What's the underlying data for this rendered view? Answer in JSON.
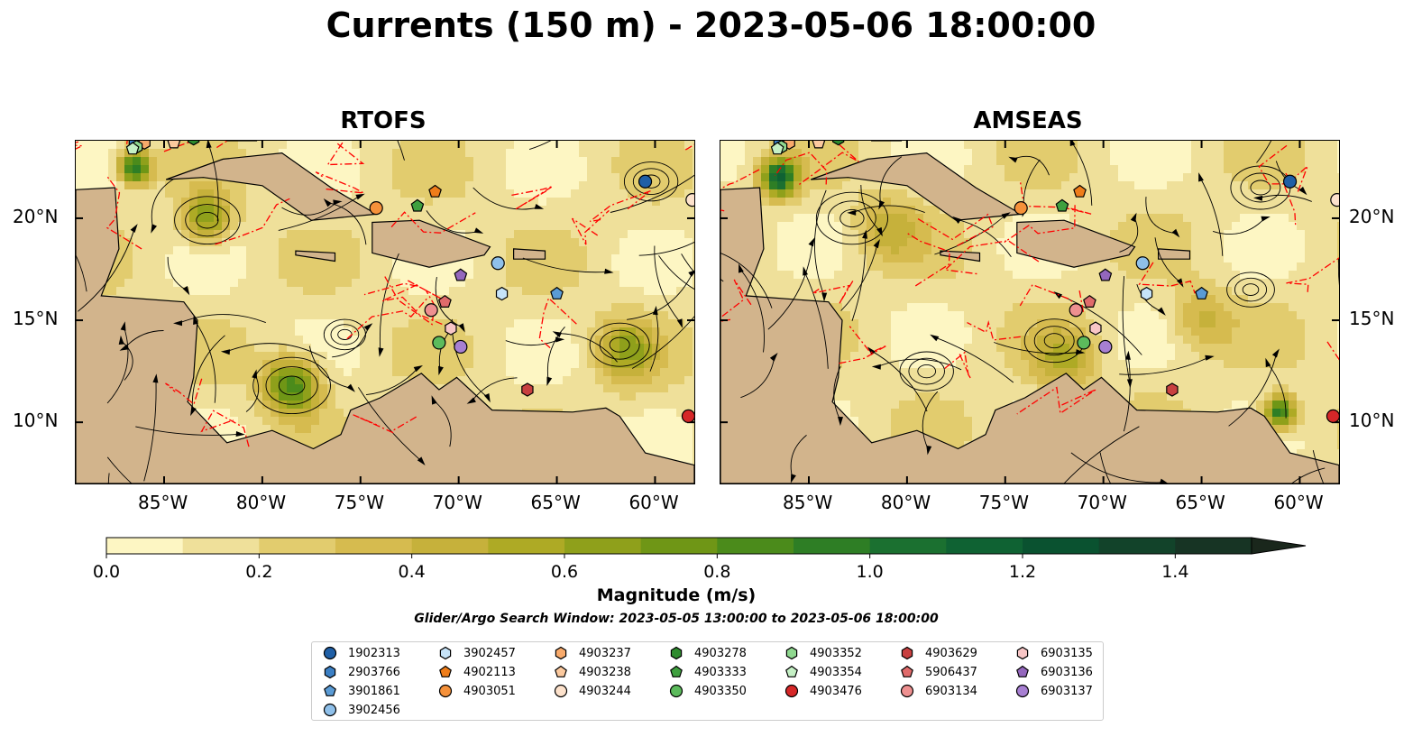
{
  "title": "Currents (150 m) - 2023-05-06 18:00:00",
  "panels": [
    {
      "title": "RTOFS"
    },
    {
      "title": "AMSEAS"
    }
  ],
  "colors": {
    "land": "#d2b48c",
    "water": "#95b4dc",
    "fronts": "#ff0000",
    "streamlines": "#000000",
    "colormap": [
      "#fdf6c3",
      "#efe09a",
      "#e2cc6e",
      "#d6bb4f",
      "#c6b13b",
      "#aeaa25",
      "#8fa01b",
      "#6f9616",
      "#4b8b1b",
      "#2e7e25",
      "#1b7030",
      "#0f6233",
      "#0a5230",
      "#12432a",
      "#173424",
      "#1a271c"
    ]
  },
  "chart_data": {
    "type": "heatmap",
    "variable": "current magnitude with streamlines",
    "depth": "150 m",
    "time": "2023-05-06 18:00:00",
    "x_ticks": [
      "85°W",
      "80°W",
      "75°W",
      "70°W",
      "65°W",
      "60°W"
    ],
    "y_ticks": [
      "20°N",
      "15°N",
      "10°N"
    ],
    "colorbar": {
      "label": "Magnitude (m/s)",
      "ticks": [
        "0.0",
        "0.2",
        "0.4",
        "0.6",
        "0.8",
        "1.0",
        "1.2",
        "1.4"
      ],
      "range": [
        0,
        1.5
      ],
      "step": 0.1,
      "extend": "max"
    },
    "search_window": "Glider/Argo Search Window: 2023-05-05 13:00:00 to 2023-05-06 18:00:00",
    "floats": [
      {
        "id": "1902313",
        "marker": "circle",
        "color": "#1f5fa6",
        "lon": -60.5,
        "lat": 21.8
      },
      {
        "id": "2903766",
        "marker": "hexagon",
        "color": "#3b7fc4",
        "lon": -86.5,
        "lat": 23.7
      },
      {
        "id": "3901861",
        "marker": "pentagon",
        "color": "#5a9bd5",
        "lon": -65.0,
        "lat": 16.3
      },
      {
        "id": "3902456",
        "marker": "circle",
        "color": "#8fc0ea",
        "lon": -68.0,
        "lat": 17.8
      },
      {
        "id": "3902457",
        "marker": "hexagon",
        "color": "#c6e3f8",
        "lon": -67.8,
        "lat": 16.3
      },
      {
        "id": "4902113",
        "marker": "pentagon",
        "color": "#ef7d1a",
        "lon": -71.2,
        "lat": 21.3
      },
      {
        "id": "4903051",
        "marker": "circle",
        "color": "#f5913a",
        "lon": -74.2,
        "lat": 20.5
      },
      {
        "id": "4903237",
        "marker": "hexagon",
        "color": "#f8aa6b",
        "lon": -86.0,
        "lat": 23.7
      },
      {
        "id": "4903238",
        "marker": "pentagon",
        "color": "#fbc99e",
        "lon": -84.5,
        "lat": 23.7
      },
      {
        "id": "4903244",
        "marker": "circle",
        "color": "#fde2cc",
        "lon": -58.1,
        "lat": 20.9
      },
      {
        "id": "4903278",
        "marker": "hexagon",
        "color": "#2e8b2e",
        "lon": -83.5,
        "lat": 23.9
      },
      {
        "id": "4903333",
        "marker": "pentagon",
        "color": "#3fa03f",
        "lon": -72.1,
        "lat": 20.6
      },
      {
        "id": "4903350",
        "marker": "circle",
        "color": "#5cbb5c",
        "lon": -71.0,
        "lat": 13.9
      },
      {
        "id": "4903352",
        "marker": "hexagon",
        "color": "#8fd88f",
        "lon": -86.4,
        "lat": 23.5
      },
      {
        "id": "4903354",
        "marker": "pentagon",
        "color": "#c5f0c5",
        "lon": -86.6,
        "lat": 23.4
      },
      {
        "id": "4903476",
        "marker": "circle",
        "color": "#d62728",
        "lon": -58.3,
        "lat": 10.3
      },
      {
        "id": "4903629",
        "marker": "hexagon",
        "color": "#c84040",
        "lon": -66.5,
        "lat": 11.6
      },
      {
        "id": "5906437",
        "marker": "pentagon",
        "color": "#e06b6b",
        "lon": -70.7,
        "lat": 15.9
      },
      {
        "id": "6903134",
        "marker": "circle",
        "color": "#ee9090",
        "lon": -71.4,
        "lat": 15.5
      },
      {
        "id": "6903135",
        "marker": "hexagon",
        "color": "#f8c6c6",
        "lon": -70.4,
        "lat": 14.6
      },
      {
        "id": "6903136",
        "marker": "pentagon",
        "color": "#9467bd",
        "lon": -69.9,
        "lat": 17.2
      },
      {
        "id": "6903137",
        "marker": "circle",
        "color": "#a77fd2",
        "lon": -69.9,
        "lat": 13.7
      }
    ],
    "legend_order": [
      [
        "1902313",
        "2903766",
        "3901861",
        "3902456"
      ],
      [
        "3902457",
        "4902113",
        "4903051"
      ],
      [
        "4903237",
        "4903238",
        "4903244"
      ],
      [
        "4903278",
        "4903333",
        "4903350"
      ],
      [
        "4903352",
        "4903354",
        "4903476"
      ],
      [
        "4903629",
        "5906437",
        "6903134"
      ],
      [
        "6903135",
        "6903136",
        "6903137"
      ]
    ]
  }
}
